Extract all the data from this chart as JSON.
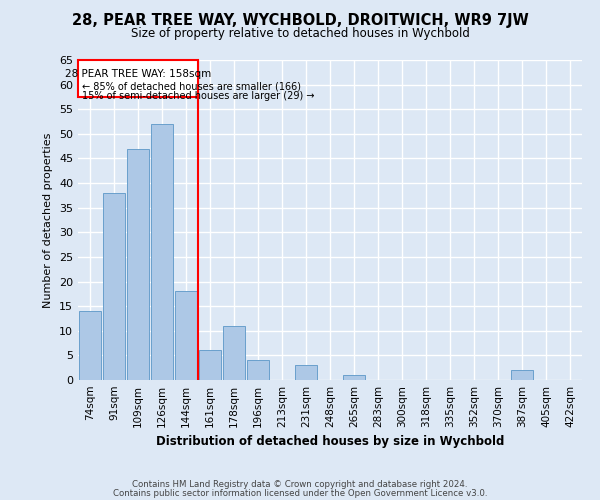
{
  "title": "28, PEAR TREE WAY, WYCHBOLD, DROITWICH, WR9 7JW",
  "subtitle": "Size of property relative to detached houses in Wychbold",
  "xlabel": "Distribution of detached houses by size in Wychbold",
  "ylabel": "Number of detached properties",
  "categories": [
    "74sqm",
    "91sqm",
    "109sqm",
    "126sqm",
    "144sqm",
    "161sqm",
    "178sqm",
    "196sqm",
    "213sqm",
    "231sqm",
    "248sqm",
    "265sqm",
    "283sqm",
    "300sqm",
    "318sqm",
    "335sqm",
    "352sqm",
    "370sqm",
    "387sqm",
    "405sqm",
    "422sqm"
  ],
  "values": [
    14,
    38,
    47,
    52,
    18,
    6,
    11,
    4,
    0,
    3,
    0,
    1,
    0,
    0,
    0,
    0,
    0,
    0,
    2,
    0,
    0
  ],
  "bar_color": "#adc8e6",
  "bar_edge_color": "#6aa0cc",
  "red_line_index": 5,
  "red_line_label": "28 PEAR TREE WAY: 158sqm",
  "annotation_line1": "← 85% of detached houses are smaller (166)",
  "annotation_line2": "15% of semi-detached houses are larger (29) →",
  "ylim": [
    0,
    65
  ],
  "yticks": [
    0,
    5,
    10,
    15,
    20,
    25,
    30,
    35,
    40,
    45,
    50,
    55,
    60,
    65
  ],
  "background_color": "#dde8f5",
  "grid_color": "#ffffff",
  "footer_line1": "Contains HM Land Registry data © Crown copyright and database right 2024.",
  "footer_line2": "Contains public sector information licensed under the Open Government Licence v3.0."
}
